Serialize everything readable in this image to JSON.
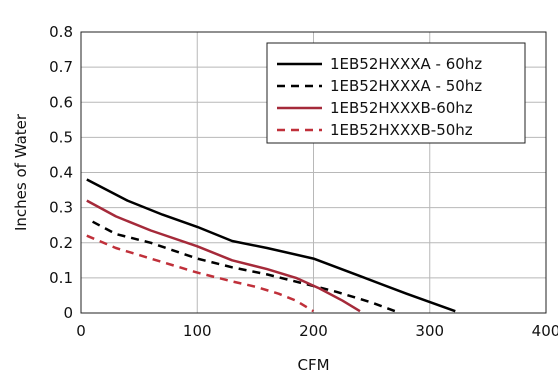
{
  "chart_data": {
    "type": "line",
    "xlabel": "CFM",
    "ylabel": "Inches of Water",
    "xlim": [
      0,
      400
    ],
    "ylim": [
      0,
      0.8
    ],
    "xticks": [
      0,
      100,
      200,
      300,
      400
    ],
    "yticks": [
      0,
      0.1,
      0.2,
      0.3,
      0.4,
      0.5,
      0.6,
      0.7,
      0.8
    ],
    "xtick_labels": [
      "0",
      "100",
      "200",
      "300",
      "400"
    ],
    "ytick_labels": [
      "0",
      "0.1",
      "0.2",
      "0.3",
      "0.4",
      "0.5",
      "0.6",
      "0.7",
      "0.8"
    ],
    "grid": true,
    "legend_position": "top-right",
    "series": [
      {
        "name": "1EB52HXXXA - 60hz",
        "color": "#000000",
        "dash": "solid",
        "x": [
          5,
          40,
          70,
          100,
          130,
          160,
          200,
          240,
          280,
          322
        ],
        "y": [
          0.38,
          0.32,
          0.28,
          0.245,
          0.205,
          0.185,
          0.155,
          0.105,
          0.055,
          0.005
        ]
      },
      {
        "name": "1EB52HXXXA - 50hz",
        "color": "#000000",
        "dash": "dashed",
        "x": [
          10,
          30,
          60,
          100,
          130,
          160,
          190,
          220,
          250,
          272
        ],
        "y": [
          0.26,
          0.225,
          0.2,
          0.155,
          0.13,
          0.11,
          0.085,
          0.06,
          0.03,
          0.003
        ]
      },
      {
        "name": "1EB52HXXXB-60hz",
        "color": "#a52a3a",
        "dash": "solid",
        "x": [
          5,
          30,
          60,
          100,
          130,
          160,
          185,
          205,
          225,
          240
        ],
        "y": [
          0.32,
          0.275,
          0.235,
          0.19,
          0.15,
          0.125,
          0.1,
          0.07,
          0.035,
          0.005
        ]
      },
      {
        "name": "1EB52HXXXB-50hz",
        "color": "#c0303a",
        "dash": "dashed",
        "x": [
          5,
          30,
          60,
          100,
          130,
          150,
          170,
          185,
          200
        ],
        "y": [
          0.22,
          0.185,
          0.155,
          0.115,
          0.09,
          0.075,
          0.055,
          0.035,
          0.005
        ]
      }
    ]
  }
}
